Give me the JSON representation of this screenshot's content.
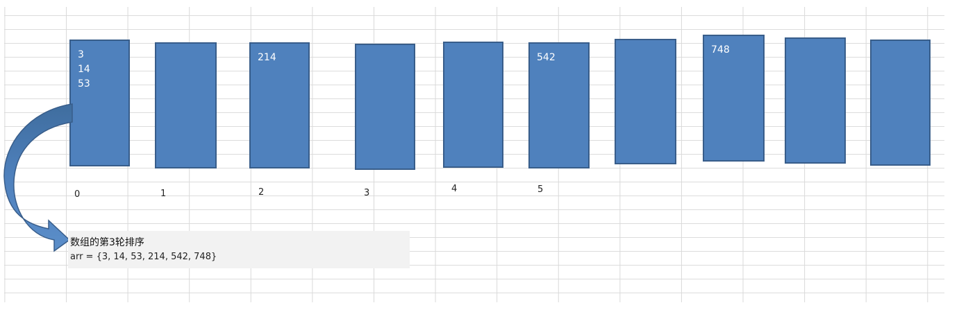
{
  "buckets": [
    {
      "index": "0",
      "items": [
        "3",
        "14",
        "53"
      ]
    },
    {
      "index": "1",
      "items": []
    },
    {
      "index": "2",
      "items": [
        "214"
      ]
    },
    {
      "index": "3",
      "items": []
    },
    {
      "index": "4",
      "items": []
    },
    {
      "index": "5",
      "items": [
        "542"
      ]
    },
    {
      "index": "",
      "items": []
    },
    {
      "index": "",
      "items": [
        "748"
      ]
    },
    {
      "index": "",
      "items": []
    },
    {
      "index": "",
      "items": []
    }
  ],
  "note": {
    "title": "数组的第3轮排序",
    "array": "arr = {3, 14, 53, 214, 542, 748}"
  },
  "colors": {
    "bucket_fill": "#4f81bd",
    "bucket_border": "#385d8a",
    "note_bg": "#f2f2f2"
  }
}
